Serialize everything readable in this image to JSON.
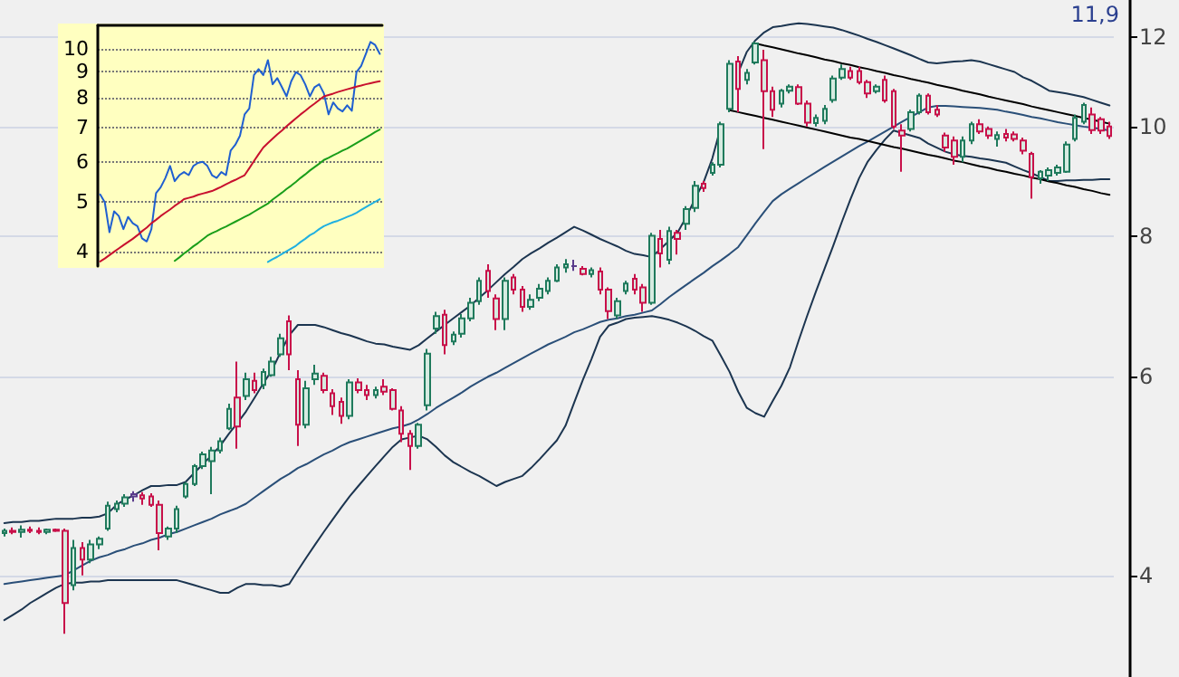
{
  "chart_data": [
    {
      "type": "candlestick",
      "categories": [
        null,
        null,
        null,
        null,
        null,
        null,
        null,
        null,
        null,
        null,
        null,
        null,
        null,
        null,
        null,
        null,
        null,
        null,
        null,
        null,
        null,
        null,
        null,
        null,
        null,
        null,
        null,
        null,
        null,
        null,
        null,
        null,
        null,
        null,
        null,
        null,
        null,
        null,
        null,
        null,
        null,
        null,
        null,
        null,
        null,
        null,
        null,
        null,
        null,
        null,
        null,
        null,
        null,
        null,
        null,
        null,
        null,
        null,
        null,
        null,
        null,
        null,
        null,
        null,
        null,
        null,
        null,
        null,
        null,
        null,
        null,
        null,
        null,
        null,
        null,
        null,
        null,
        null,
        null,
        null,
        null,
        null,
        null,
        null,
        null,
        null,
        null,
        null,
        null,
        null,
        null,
        null,
        null,
        null,
        null,
        null,
        null,
        null,
        null,
        null,
        null,
        null,
        null,
        null,
        null,
        null,
        null,
        null,
        null,
        null,
        null,
        null,
        null,
        null,
        null,
        null,
        null,
        null,
        null,
        null,
        null,
        null,
        null,
        null,
        null,
        null,
        null,
        null,
        null
      ],
      "ohlc": [
        [
          4.36,
          4.4,
          4.33,
          4.38
        ],
        [
          4.38,
          4.41,
          4.35,
          4.37
        ],
        [
          4.37,
          4.43,
          4.32,
          4.39
        ],
        [
          4.39,
          4.42,
          4.36,
          4.38
        ],
        [
          4.38,
          4.41,
          4.35,
          4.37
        ],
        [
          4.37,
          4.4,
          4.35,
          4.39
        ],
        [
          4.39,
          4.4,
          4.37,
          4.38
        ],
        [
          4.38,
          4.4,
          3.55,
          3.78
        ],
        [
          3.92,
          4.3,
          3.88,
          4.23
        ],
        [
          4.23,
          4.28,
          4.0,
          4.13
        ],
        [
          4.13,
          4.3,
          4.1,
          4.26
        ],
        [
          4.26,
          4.33,
          4.22,
          4.31
        ],
        [
          4.4,
          4.65,
          4.38,
          4.61
        ],
        [
          4.58,
          4.66,
          4.55,
          4.63
        ],
        [
          4.63,
          4.72,
          4.6,
          4.69
        ],
        [
          4.7,
          4.75,
          4.65,
          4.72
        ],
        [
          4.71,
          4.74,
          4.62,
          4.68
        ],
        [
          4.7,
          4.73,
          4.6,
          4.62
        ],
        [
          4.62,
          4.66,
          4.21,
          4.36
        ],
        [
          4.33,
          4.42,
          4.3,
          4.4
        ],
        [
          4.4,
          4.61,
          4.36,
          4.58
        ],
        [
          4.7,
          4.84,
          4.68,
          4.82
        ],
        [
          4.82,
          5.02,
          4.8,
          5.0
        ],
        [
          5.0,
          5.15,
          4.97,
          5.12
        ],
        [
          5.05,
          5.2,
          4.72,
          5.16
        ],
        [
          5.16,
          5.3,
          5.13,
          5.26
        ],
        [
          5.4,
          5.68,
          5.38,
          5.62
        ],
        [
          5.75,
          6.19,
          5.18,
          5.42
        ],
        [
          5.77,
          6.05,
          5.72,
          5.97
        ],
        [
          5.95,
          6.05,
          5.8,
          5.84
        ],
        [
          5.9,
          6.1,
          5.85,
          6.06
        ],
        [
          6.02,
          6.25,
          6.0,
          6.19
        ],
        [
          6.28,
          6.55,
          6.25,
          6.49
        ],
        [
          6.72,
          6.8,
          6.08,
          6.28
        ],
        [
          5.97,
          6.08,
          5.21,
          5.44
        ],
        [
          5.44,
          5.95,
          5.4,
          5.86
        ],
        [
          5.97,
          6.15,
          5.9,
          6.04
        ],
        [
          6.01,
          6.05,
          5.8,
          5.84
        ],
        [
          5.8,
          5.85,
          5.55,
          5.65
        ],
        [
          5.7,
          5.75,
          5.45,
          5.54
        ],
        [
          5.54,
          5.97,
          5.5,
          5.93
        ],
        [
          5.93,
          5.98,
          5.8,
          5.84
        ],
        [
          5.84,
          5.9,
          5.72,
          5.78
        ],
        [
          5.78,
          5.88,
          5.74,
          5.84
        ],
        [
          5.88,
          5.97,
          5.78,
          5.82
        ],
        [
          5.84,
          5.86,
          5.6,
          5.62
        ],
        [
          5.6,
          5.65,
          5.25,
          5.34
        ],
        [
          5.34,
          5.38,
          4.96,
          5.21
        ],
        [
          5.21,
          5.46,
          5.18,
          5.44
        ],
        [
          5.66,
          6.35,
          5.6,
          6.29
        ],
        [
          6.62,
          6.85,
          6.55,
          6.79
        ],
        [
          6.81,
          6.88,
          6.28,
          6.4
        ],
        [
          6.45,
          6.58,
          6.4,
          6.54
        ],
        [
          6.55,
          6.82,
          6.5,
          6.76
        ],
        [
          6.76,
          7.05,
          6.72,
          6.98
        ],
        [
          7.0,
          7.35,
          6.95,
          7.3
        ],
        [
          7.45,
          7.55,
          7.05,
          7.15
        ],
        [
          7.04,
          7.1,
          6.6,
          6.75
        ],
        [
          6.75,
          7.35,
          6.6,
          7.3
        ],
        [
          7.35,
          7.4,
          7.1,
          7.17
        ],
        [
          7.17,
          7.22,
          6.85,
          6.92
        ],
        [
          6.92,
          7.1,
          6.88,
          7.02
        ],
        [
          7.05,
          7.25,
          7.0,
          7.18
        ],
        [
          7.15,
          7.35,
          7.1,
          7.3
        ],
        [
          7.3,
          7.55,
          7.28,
          7.5
        ],
        [
          7.5,
          7.63,
          7.42,
          7.55
        ],
        [
          7.52,
          7.62,
          7.45,
          7.52
        ],
        [
          7.48,
          7.52,
          7.38,
          7.4
        ],
        [
          7.4,
          7.5,
          7.35,
          7.46
        ],
        [
          7.44,
          7.5,
          7.1,
          7.17
        ],
        [
          7.17,
          7.2,
          6.75,
          6.86
        ],
        [
          6.8,
          7.05,
          6.75,
          7.0
        ],
        [
          7.15,
          7.3,
          7.1,
          7.26
        ],
        [
          7.33,
          7.4,
          7.1,
          7.17
        ],
        [
          7.2,
          7.25,
          6.85,
          6.98
        ],
        [
          6.98,
          8.05,
          6.95,
          8.0
        ],
        [
          7.95,
          8.1,
          7.5,
          7.72
        ],
        [
          7.62,
          8.15,
          7.55,
          8.08
        ],
        [
          8.05,
          8.1,
          7.7,
          7.95
        ],
        [
          8.2,
          8.5,
          8.1,
          8.45
        ],
        [
          8.47,
          8.95,
          8.4,
          8.86
        ],
        [
          8.9,
          8.95,
          8.75,
          8.82
        ],
        [
          9.1,
          9.3,
          9.05,
          9.25
        ],
        [
          9.25,
          10.1,
          9.2,
          10.05
        ],
        [
          10.37,
          11.45,
          10.3,
          11.37
        ],
        [
          11.42,
          11.55,
          10.3,
          10.8
        ],
        [
          11.0,
          11.25,
          10.9,
          11.16
        ],
        [
          11.4,
          11.9,
          11.35,
          11.85
        ],
        [
          11.45,
          11.7,
          9.55,
          10.75
        ],
        [
          10.75,
          10.85,
          10.2,
          10.35
        ],
        [
          10.48,
          10.8,
          10.4,
          10.76
        ],
        [
          10.76,
          10.9,
          10.7,
          10.85
        ],
        [
          10.84,
          10.9,
          10.45,
          10.48
        ],
        [
          10.48,
          10.55,
          10.0,
          10.08
        ],
        [
          10.07,
          10.25,
          10.0,
          10.18
        ],
        [
          10.12,
          10.45,
          10.05,
          10.37
        ],
        [
          10.56,
          11.1,
          10.5,
          11.03
        ],
        [
          11.05,
          11.35,
          11.0,
          11.25
        ],
        [
          11.2,
          11.3,
          11.0,
          11.05
        ],
        [
          11.2,
          11.3,
          10.9,
          10.95
        ],
        [
          10.95,
          11.0,
          10.6,
          10.7
        ],
        [
          10.75,
          10.9,
          10.7,
          10.85
        ],
        [
          11.0,
          11.1,
          10.5,
          10.55
        ],
        [
          10.75,
          10.8,
          9.95,
          10.0
        ],
        [
          9.92,
          10.05,
          9.12,
          9.82
        ],
        [
          9.95,
          10.35,
          9.9,
          10.3
        ],
        [
          10.3,
          10.7,
          10.25,
          10.65
        ],
        [
          10.65,
          10.7,
          10.25,
          10.3
        ],
        [
          10.35,
          10.45,
          10.2,
          10.25
        ],
        [
          9.82,
          9.88,
          9.5,
          9.58
        ],
        [
          9.72,
          9.8,
          9.25,
          9.4
        ],
        [
          9.4,
          9.8,
          9.3,
          9.72
        ],
        [
          9.72,
          10.1,
          9.65,
          10.05
        ],
        [
          10.05,
          10.15,
          9.85,
          9.9
        ],
        [
          9.95,
          10.0,
          9.75,
          9.82
        ],
        [
          9.75,
          9.9,
          9.6,
          9.83
        ],
        [
          9.85,
          9.95,
          9.7,
          9.78
        ],
        [
          9.84,
          9.9,
          9.7,
          9.75
        ],
        [
          9.72,
          9.78,
          9.45,
          9.52
        ],
        [
          9.46,
          9.5,
          8.63,
          9.02
        ],
        [
          9.0,
          9.15,
          8.9,
          9.12
        ],
        [
          9.05,
          9.2,
          8.95,
          9.15
        ],
        [
          9.1,
          9.25,
          9.05,
          9.2
        ],
        [
          9.12,
          9.7,
          9.1,
          9.64
        ],
        [
          9.75,
          10.25,
          9.7,
          10.18
        ],
        [
          10.1,
          10.5,
          10.05,
          10.45
        ],
        [
          10.25,
          10.4,
          9.85,
          9.93
        ],
        [
          10.15,
          10.2,
          9.85,
          9.92
        ],
        [
          10.0,
          10.1,
          9.75,
          9.81
        ]
      ],
      "colors": [
        "#1f7a5c",
        "#c8104a",
        "#1f7a5c",
        "#c8104a",
        "#c8104a",
        "#1f7a5c",
        "#c8104a",
        "#c8104a",
        "#1f7a5c",
        "#c8104a",
        "#1f7a5c",
        "#1f7a5c",
        "#1f7a5c",
        "#1f7a5c",
        "#1f7a5c",
        "#5a3c8c",
        "#c8104a",
        "#c8104a",
        "#c8104a",
        "#1f7a5c",
        "#1f7a5c",
        "#1f7a5c",
        "#1f7a5c",
        "#1f7a5c",
        "#1f7a5c",
        "#1f7a5c",
        "#1f7a5c",
        "#c8104a",
        "#1f7a5c",
        "#c8104a",
        "#1f7a5c",
        "#1f7a5c",
        "#1f7a5c",
        "#c8104a",
        "#c8104a",
        "#1f7a5c",
        "#1f7a5c",
        "#c8104a",
        "#c8104a",
        "#c8104a",
        "#1f7a5c",
        "#c8104a",
        "#c8104a",
        "#1f7a5c",
        "#c8104a",
        "#c8104a",
        "#c8104a",
        "#c8104a",
        "#1f7a5c",
        "#1f7a5c",
        "#1f7a5c",
        "#c8104a",
        "#1f7a5c",
        "#1f7a5c",
        "#1f7a5c",
        "#1f7a5c",
        "#c8104a",
        "#c8104a",
        "#1f7a5c",
        "#c8104a",
        "#c8104a",
        "#1f7a5c",
        "#1f7a5c",
        "#1f7a5c",
        "#1f7a5c",
        "#1f7a5c",
        "#5a3c8c",
        "#c8104a",
        "#1f7a5c",
        "#c8104a",
        "#c8104a",
        "#1f7a5c",
        "#1f7a5c",
        "#c8104a",
        "#c8104a",
        "#1f7a5c",
        "#c8104a",
        "#1f7a5c",
        "#c8104a",
        "#1f7a5c",
        "#1f7a5c",
        "#c8104a",
        "#1f7a5c",
        "#1f7a5c",
        "#1f7a5c",
        "#c8104a",
        "#1f7a5c",
        "#1f7a5c",
        "#c8104a",
        "#c8104a",
        "#1f7a5c",
        "#1f7a5c",
        "#c8104a",
        "#c8104a",
        "#1f7a5c",
        "#1f7a5c",
        "#1f7a5c",
        "#1f7a5c",
        "#c8104a",
        "#c8104a",
        "#c8104a",
        "#1f7a5c",
        "#c8104a",
        "#c8104a",
        "#c8104a",
        "#1f7a5c",
        "#1f7a5c",
        "#c8104a",
        "#c8104a",
        "#c8104a",
        "#c8104a",
        "#1f7a5c",
        "#1f7a5c",
        "#c8104a",
        "#c8104a",
        "#1f7a5c",
        "#c8104a",
        "#c8104a",
        "#c8104a",
        "#c8104a",
        "#1f7a5c",
        "#1f7a5c",
        "#1f7a5c",
        "#1f7a5c",
        "#1f7a5c",
        "#1f7a5c",
        "#c8104a",
        "#c8104a",
        "#c8104a"
      ],
      "series": [
        {
          "type": "line",
          "color": "#1c3550",
          "values": [
            4.45,
            4.46,
            4.46,
            4.47,
            4.47,
            4.48,
            4.49,
            4.49,
            4.49,
            4.5,
            4.5,
            4.51,
            4.54,
            4.62,
            4.67,
            4.71,
            4.76,
            4.8,
            4.8,
            4.81,
            4.81,
            4.84,
            4.93,
            5.02,
            5.11,
            5.21,
            5.34,
            5.46,
            5.59,
            5.75,
            5.92,
            6.08,
            6.31,
            6.53,
            6.67,
            6.67,
            6.67,
            6.64,
            6.6,
            6.56,
            6.53,
            6.49,
            6.45,
            6.42,
            6.41,
            6.38,
            6.36,
            6.34,
            6.4,
            6.49,
            6.58,
            6.67,
            6.76,
            6.85,
            6.94,
            7.05,
            7.16,
            7.28,
            7.4,
            7.51,
            7.63,
            7.72,
            7.8,
            7.89,
            7.97,
            8.06,
            8.15,
            8.09,
            8.02,
            7.95,
            7.89,
            7.83,
            7.76,
            7.71,
            7.69,
            7.66,
            7.79,
            7.92,
            8.06,
            8.32,
            8.63,
            8.93,
            9.37,
            10.0,
            null,
            11.16,
            11.65,
            11.93,
            12.12,
            12.25,
            12.28,
            12.32,
            12.35,
            12.33,
            12.3,
            12.27,
            12.24,
            12.18,
            12.11,
            12.04,
            11.96,
            11.89,
            11.81,
            11.73,
            11.65,
            11.57,
            11.48,
            11.4,
            11.38,
            11.4,
            11.42,
            11.43,
            11.45,
            11.42,
            11.36,
            11.3,
            11.24,
            11.18,
            11.06,
            10.98,
            10.87,
            10.76,
            10.73,
            10.7,
            10.66,
            10.62,
            10.56,
            10.5,
            10.44
          ]
        },
        {
          "type": "line",
          "color": "#2a4f78",
          "values": [
            3.93,
            3.94,
            3.95,
            3.96,
            3.97,
            3.98,
            3.99,
            4.0,
            4.04,
            4.08,
            4.12,
            4.15,
            4.17,
            4.2,
            4.22,
            4.25,
            4.27,
            4.3,
            4.32,
            4.35,
            4.37,
            4.4,
            4.43,
            4.46,
            4.49,
            4.53,
            4.56,
            4.59,
            4.63,
            4.69,
            4.75,
            4.81,
            4.87,
            4.92,
            4.98,
            5.02,
            5.07,
            5.12,
            5.16,
            5.21,
            5.25,
            5.28,
            5.31,
            5.34,
            5.37,
            5.4,
            5.42,
            5.45,
            5.5,
            5.56,
            5.63,
            5.69,
            5.75,
            5.81,
            5.88,
            5.94,
            6.0,
            6.05,
            6.11,
            6.17,
            6.23,
            6.29,
            6.35,
            6.41,
            6.46,
            6.51,
            6.57,
            6.61,
            6.66,
            6.71,
            6.74,
            6.76,
            6.79,
            6.81,
            6.84,
            6.87,
            6.96,
            7.06,
            7.15,
            7.24,
            7.33,
            7.42,
            7.52,
            7.61,
            7.71,
            7.82,
            8.01,
            8.21,
            8.4,
            8.59,
            8.71,
            8.81,
            8.91,
            9.01,
            9.11,
            9.21,
            9.31,
            9.41,
            9.51,
            9.61,
            9.7,
            9.8,
            9.9,
            10.0,
            10.1,
            10.2,
            10.3,
            10.4,
            10.43,
            10.43,
            10.42,
            10.41,
            10.4,
            10.39,
            10.37,
            10.35,
            10.31,
            10.28,
            10.24,
            10.2,
            10.17,
            10.13,
            10.09,
            10.06,
            10.03,
            10.0,
            9.98,
            9.95,
            9.92
          ]
        },
        {
          "type": "line",
          "color": "#1c3550",
          "values": [
            3.65,
            3.69,
            3.73,
            3.78,
            3.82,
            3.86,
            3.9,
            3.93,
            3.94,
            3.94,
            3.95,
            3.95,
            3.96,
            3.96,
            3.96,
            3.96,
            3.96,
            3.96,
            3.96,
            3.96,
            3.96,
            3.94,
            3.92,
            3.9,
            3.88,
            3.86,
            3.86,
            3.9,
            3.93,
            3.93,
            3.92,
            3.92,
            3.91,
            3.93,
            4.04,
            4.15,
            4.26,
            4.37,
            4.48,
            4.59,
            4.7,
            4.8,
            4.9,
            5.0,
            5.1,
            5.2,
            5.28,
            5.3,
            5.32,
            5.28,
            5.2,
            5.11,
            5.04,
            4.99,
            4.94,
            4.9,
            4.85,
            4.8,
            4.84,
            4.87,
            4.9,
            4.98,
            5.07,
            5.17,
            5.27,
            5.43,
            5.69,
            5.96,
            6.22,
            6.51,
            6.66,
            6.7,
            6.75,
            6.77,
            6.78,
            6.79,
            6.77,
            6.74,
            6.7,
            6.65,
            6.59,
            6.52,
            6.46,
            6.26,
            6.06,
            5.82,
            5.63,
            5.57,
            5.53,
            5.71,
            5.89,
            6.12,
            6.46,
            6.8,
            7.14,
            7.48,
            7.84,
            8.23,
            8.62,
            9.0,
            9.31,
            9.53,
            9.74,
            9.92,
            9.87,
            9.82,
            9.77,
            9.66,
            9.58,
            9.5,
            9.45,
            9.42,
            9.4,
            9.37,
            9.35,
            9.32,
            9.29,
            9.22,
            9.15,
            9.09,
            9.02,
            8.95,
            8.95,
            8.96,
            8.96,
            8.97,
            8.97,
            8.98,
            8.98
          ]
        },
        {
          "type": "line",
          "color": "#000000",
          "values": [
            null,
            null,
            null,
            null,
            null,
            null,
            null,
            null,
            null,
            null,
            null,
            null,
            null,
            null,
            null,
            null,
            null,
            null,
            null,
            null,
            null,
            null,
            null,
            null,
            null,
            null,
            null,
            null,
            null,
            null,
            null,
            null,
            null,
            null,
            null,
            null,
            null,
            null,
            null,
            null,
            null,
            null,
            null,
            null,
            null,
            null,
            null,
            null,
            null,
            null,
            null,
            null,
            null,
            null,
            null,
            null,
            null,
            null,
            null,
            null,
            null,
            null,
            null,
            null,
            null,
            null,
            null,
            null,
            null,
            null,
            null,
            null,
            null,
            null,
            null,
            null,
            null,
            null,
            null,
            null,
            null,
            null,
            null,
            null,
            null,
            null,
            null,
            11.85,
            11.8,
            11.76,
            11.71,
            11.66,
            11.61,
            11.57,
            11.52,
            11.47,
            11.43,
            11.38,
            11.34,
            11.29,
            11.25,
            11.2,
            11.16,
            11.11,
            11.07,
            11.02,
            10.98,
            10.94,
            10.89,
            10.85,
            10.81,
            10.76,
            10.72,
            10.68,
            10.63,
            10.59,
            10.55,
            10.51,
            10.47,
            10.42,
            10.38,
            10.34,
            10.3,
            10.26,
            10.22,
            10.18,
            10.14,
            10.1,
            10.06
          ]
        },
        {
          "type": "line",
          "color": "#000000",
          "values": [
            null,
            null,
            null,
            null,
            null,
            null,
            null,
            null,
            null,
            null,
            null,
            null,
            null,
            null,
            null,
            null,
            null,
            null,
            null,
            null,
            null,
            null,
            null,
            null,
            null,
            null,
            null,
            null,
            null,
            null,
            null,
            null,
            null,
            null,
            null,
            null,
            null,
            null,
            null,
            null,
            null,
            null,
            null,
            null,
            null,
            null,
            null,
            null,
            null,
            null,
            null,
            null,
            null,
            null,
            null,
            null,
            null,
            null,
            null,
            null,
            null,
            null,
            null,
            null,
            null,
            null,
            null,
            null,
            null,
            null,
            null,
            null,
            null,
            null,
            null,
            null,
            null,
            null,
            null,
            null,
            null,
            null,
            null,
            null,
            10.34,
            10.3,
            10.26,
            10.22,
            10.18,
            10.14,
            10.1,
            10.06,
            10.02,
            9.98,
            9.94,
            9.9,
            9.86,
            9.82,
            9.78,
            9.75,
            9.71,
            9.67,
            9.63,
            9.59,
            9.56,
            9.52,
            9.48,
            9.44,
            9.41,
            9.37,
            9.33,
            9.3,
            9.26,
            9.22,
            9.19,
            9.15,
            9.12,
            9.08,
            9.05,
            9.01,
            8.98,
            8.94,
            8.91,
            8.87,
            8.84,
            8.8,
            8.77,
            8.73,
            8.7
          ]
        }
      ],
      "annotations": [
        "11,9"
      ],
      "ylim": [
        3.25,
        12.95
      ],
      "yticks": [
        4,
        6,
        8,
        10,
        12
      ],
      "log": true,
      "grid": "y",
      "tick_labels": "y",
      "marker": "none"
    },
    {
      "type": "line",
      "categories": [
        null,
        null,
        null,
        null,
        null,
        null,
        null,
        null,
        null,
        null,
        null,
        null,
        null,
        null,
        null,
        null,
        null,
        null,
        null,
        null,
        null,
        null,
        null,
        null,
        null,
        null,
        null,
        null,
        null,
        null,
        null,
        null,
        null,
        null,
        null,
        null,
        null,
        null,
        null,
        null,
        null,
        null,
        null,
        null,
        null,
        null,
        null,
        null,
        null,
        null,
        null,
        null,
        null,
        null,
        null,
        null,
        null,
        null,
        null,
        null,
        null
      ],
      "series": [
        {
          "color": "#1f5fd0",
          "values": [
            5.18,
            5.0,
            4.37,
            4.8,
            4.7,
            4.43,
            4.68,
            4.55,
            4.49,
            4.25,
            4.19,
            4.43,
            5.21,
            5.35,
            5.58,
            5.89,
            5.5,
            5.65,
            5.73,
            5.65,
            5.89,
            5.97,
            6.0,
            5.89,
            5.65,
            5.58,
            5.73,
            5.65,
            6.31,
            6.48,
            6.75,
            7.43,
            7.63,
            8.87,
            9.11,
            8.87,
            9.49,
            8.51,
            8.75,
            8.4,
            8.06,
            8.63,
            8.99,
            8.87,
            8.51,
            8.06,
            8.4,
            8.51,
            8.17,
            7.43,
            7.84,
            7.63,
            7.53,
            7.74,
            7.55,
            8.99,
            9.24,
            9.76,
            10.3,
            10.16,
            9.76
          ]
        },
        {
          "color": "#c8102e",
          "values": [
            3.83,
            3.88,
            3.94,
            4.0,
            4.06,
            4.12,
            4.18,
            4.24,
            4.31,
            4.39,
            4.46,
            4.55,
            4.62,
            4.7,
            4.77,
            4.84,
            4.92,
            4.99,
            5.07,
            5.1,
            5.13,
            5.17,
            5.2,
            5.23,
            5.26,
            5.31,
            5.36,
            5.42,
            5.48,
            5.53,
            5.59,
            5.65,
            5.83,
            6.02,
            6.21,
            6.4,
            6.53,
            6.66,
            6.79,
            6.91,
            7.04,
            7.17,
            7.3,
            7.43,
            7.55,
            7.68,
            7.8,
            7.93,
            8.06,
            8.11,
            8.16,
            8.22,
            8.27,
            8.32,
            8.37,
            8.42,
            8.46,
            8.51,
            8.55,
            8.59,
            8.63
          ]
        },
        {
          "color": "#1a9e1a",
          "values": [
            null,
            null,
            null,
            null,
            null,
            null,
            null,
            null,
            null,
            null,
            null,
            null,
            null,
            null,
            null,
            null,
            3.84,
            3.9,
            3.97,
            4.03,
            4.1,
            4.16,
            4.23,
            4.3,
            4.35,
            4.39,
            4.44,
            4.48,
            4.53,
            4.58,
            4.63,
            4.68,
            4.73,
            4.79,
            4.85,
            4.91,
            4.97,
            5.06,
            5.14,
            5.22,
            5.31,
            5.39,
            5.48,
            5.58,
            5.67,
            5.77,
            5.86,
            5.95,
            6.05,
            6.11,
            6.18,
            6.24,
            6.31,
            6.37,
            6.45,
            6.53,
            6.61,
            6.69,
            6.77,
            6.86,
            6.94
          ]
        },
        {
          "color": "#20b0e0",
          "values": [
            null,
            null,
            null,
            null,
            null,
            null,
            null,
            null,
            null,
            null,
            null,
            null,
            null,
            null,
            null,
            null,
            null,
            null,
            null,
            null,
            null,
            null,
            null,
            null,
            null,
            null,
            null,
            null,
            null,
            null,
            null,
            null,
            null,
            null,
            null,
            null,
            3.82,
            3.87,
            3.91,
            3.96,
            4.01,
            4.06,
            4.11,
            4.18,
            4.24,
            4.31,
            4.36,
            4.43,
            4.49,
            4.53,
            4.57,
            4.6,
            4.64,
            4.68,
            4.72,
            4.77,
            4.83,
            4.89,
            4.95,
            5.01,
            5.07
          ]
        }
      ],
      "ylim": [
        3.75,
        11.1
      ],
      "yticks": [
        4,
        5,
        6,
        7,
        8,
        9,
        10
      ],
      "log": true,
      "grid": "y",
      "tick_labels": "y",
      "marker": "none"
    }
  ]
}
